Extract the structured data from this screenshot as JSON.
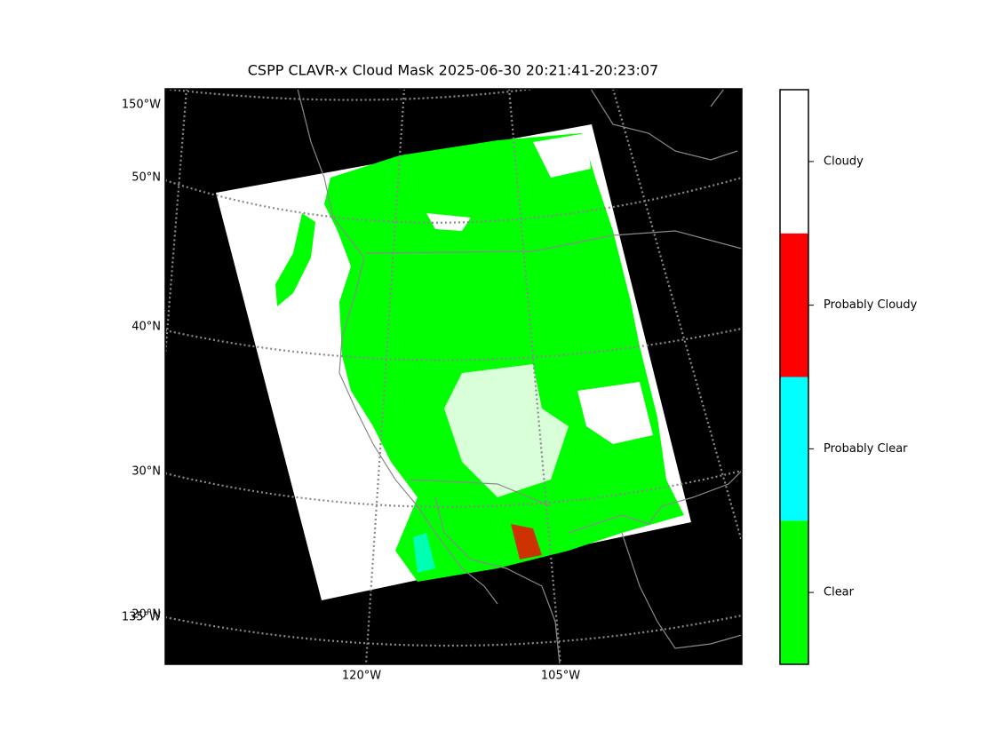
{
  "title": "CSPP CLAVR-x Cloud Mask 2025-06-30 20:21:41-20:23:07",
  "map": {
    "left_labels": [
      "150°W",
      "50°N",
      "40°N",
      "30°N",
      "20°N",
      "135°W"
    ],
    "bottom_labels": [
      "120°W",
      "105°W"
    ]
  },
  "colorbar": {
    "categories": [
      {
        "label": "Clear",
        "color": "#00ff00"
      },
      {
        "label": "Probably Clear",
        "color": "#00ffff"
      },
      {
        "label": "Probably Cloudy",
        "color": "#ff0000"
      },
      {
        "label": "Cloudy",
        "color": "#ffffff"
      }
    ]
  }
}
